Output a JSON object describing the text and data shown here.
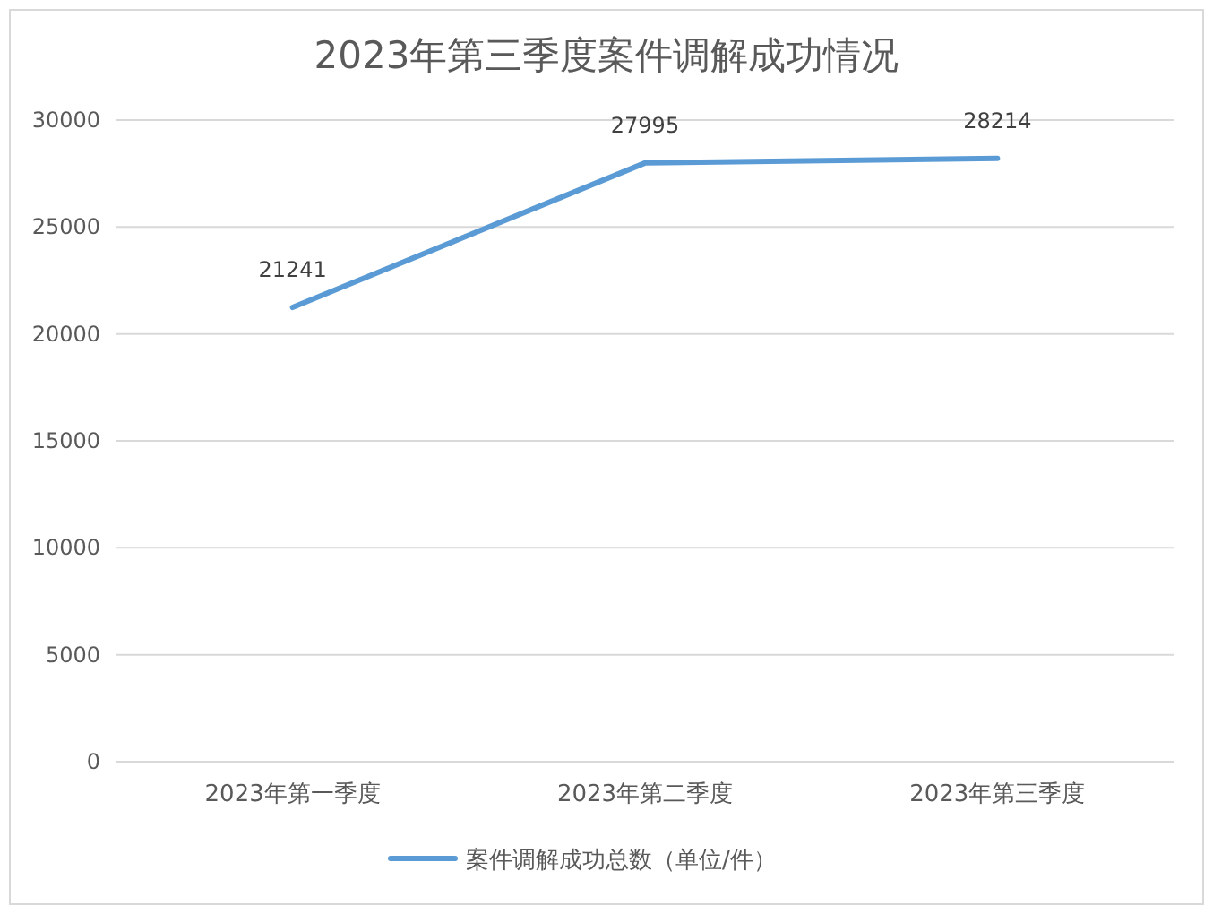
{
  "chart_data": {
    "type": "line",
    "title": "2023年第三季度案件调解成功情况",
    "categories": [
      "2023年第一季度",
      "2023年第二季度",
      "2023年第三季度"
    ],
    "series": [
      {
        "name": "案件调解成功总数（单位/件）",
        "color": "#5b9bd5",
        "values": [
          21241,
          27995,
          28214
        ]
      }
    ],
    "ylim": [
      0,
      30000
    ],
    "yticks": [
      0,
      5000,
      10000,
      15000,
      20000,
      25000,
      30000
    ],
    "grid": "y",
    "legend": "bottom",
    "data_labels": true,
    "marker": "none",
    "line_style": "solid"
  }
}
